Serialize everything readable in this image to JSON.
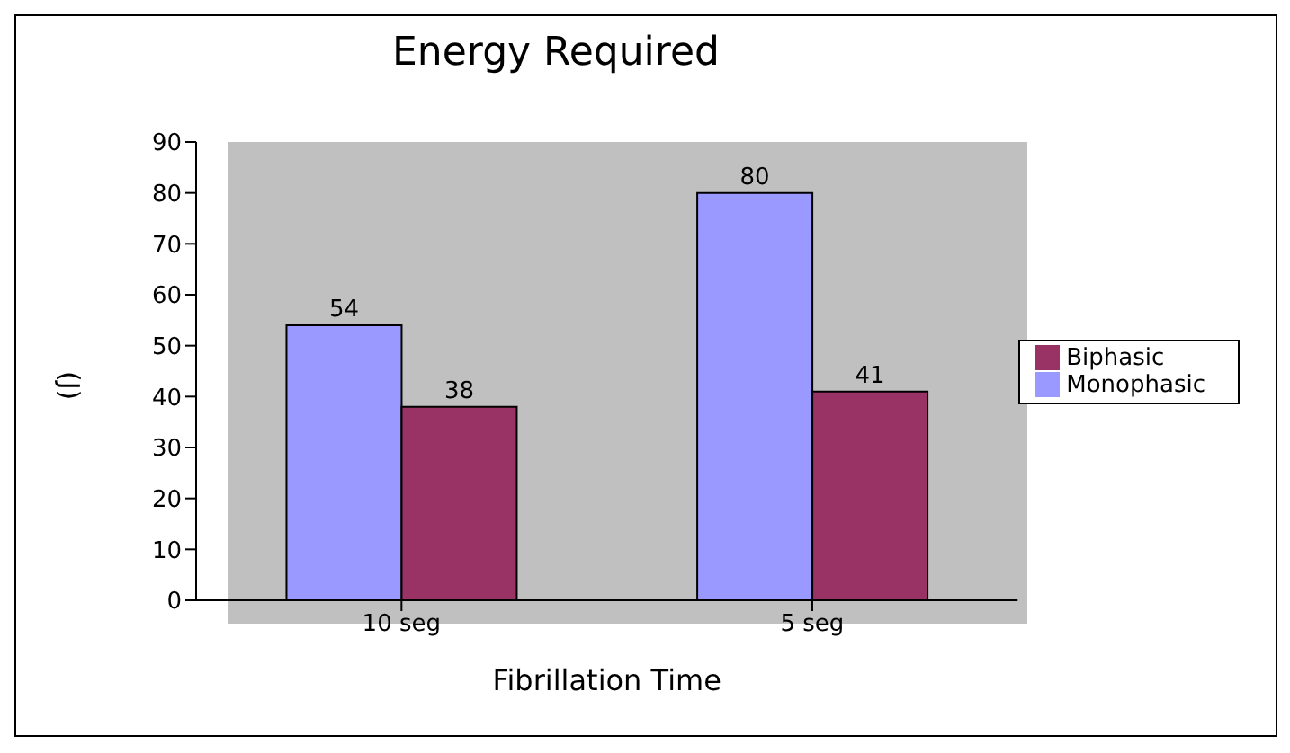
{
  "chart_data": {
    "type": "bar",
    "title": "Energy Required",
    "xlabel": "Fibrillation Time",
    "ylabel": "(J)",
    "categories": [
      "10 seg",
      "5 seg"
    ],
    "series": [
      {
        "name": "Monophasic",
        "color": "#9999ff",
        "values": [
          54,
          80
        ]
      },
      {
        "name": "Biphasic",
        "color": "#993366",
        "values": [
          38,
          41
        ]
      }
    ],
    "ylim": [
      0,
      90
    ],
    "yticks": [
      0,
      10,
      20,
      30,
      40,
      50,
      60,
      70,
      80,
      90
    ],
    "grid": false,
    "legend": "right",
    "data_labels": true
  }
}
